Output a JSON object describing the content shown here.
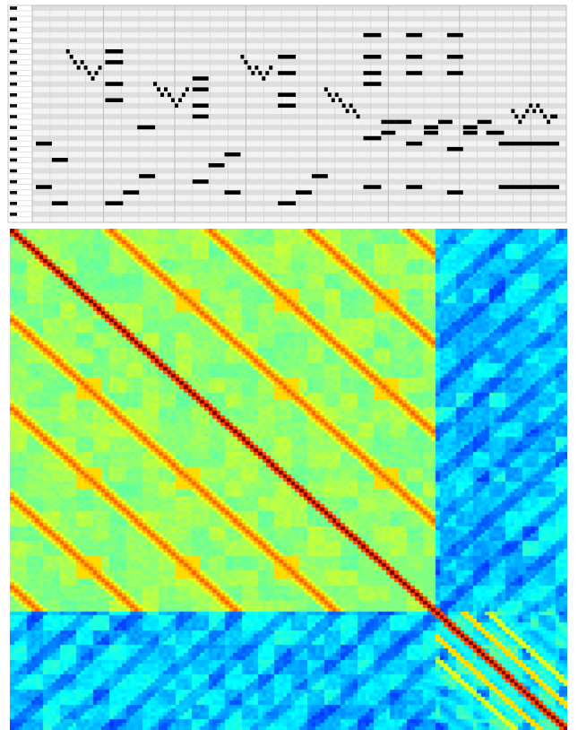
{
  "chart_data": [
    {
      "type": "pianoroll",
      "pitch_rows": 40,
      "time_range": [
        0,
        30
      ],
      "beat_lines_every": 1,
      "bar_lines_every": 4,
      "colors": {
        "note": "#000000",
        "grid": "#d4d4d4",
        "row_dark": "#dedede",
        "row_light": "#f3f3f3",
        "key_black": "#111111"
      },
      "notes": [
        [
          0.2,
          1.1,
          33
        ],
        [
          1.1,
          2.0,
          36
        ],
        [
          0.2,
          1.1,
          25
        ],
        [
          1.1,
          2.0,
          28
        ],
        [
          1.9,
          2.1,
          8
        ],
        [
          2.1,
          2.3,
          9
        ],
        [
          2.3,
          2.5,
          10
        ],
        [
          2.5,
          2.7,
          11
        ],
        [
          2.7,
          2.9,
          10
        ],
        [
          2.9,
          3.1,
          11
        ],
        [
          3.1,
          3.3,
          12
        ],
        [
          3.3,
          3.5,
          13
        ],
        [
          3.5,
          3.7,
          12
        ],
        [
          3.7,
          3.9,
          11
        ],
        [
          4.1,
          5.1,
          8
        ],
        [
          4.1,
          5.1,
          10
        ],
        [
          4.1,
          5.1,
          14
        ],
        [
          4.1,
          5.1,
          17
        ],
        [
          4.1,
          5.1,
          36
        ],
        [
          5.1,
          6.0,
          34
        ],
        [
          6.0,
          6.9,
          31
        ],
        [
          5.9,
          6.9,
          22
        ],
        [
          6.8,
          7.0,
          14
        ],
        [
          7.0,
          7.2,
          15
        ],
        [
          7.2,
          7.4,
          16
        ],
        [
          7.4,
          7.6,
          15
        ],
        [
          7.6,
          7.8,
          16
        ],
        [
          7.8,
          8.0,
          17
        ],
        [
          8.0,
          8.2,
          18
        ],
        [
          8.2,
          8.4,
          17
        ],
        [
          8.4,
          8.6,
          16
        ],
        [
          8.6,
          8.8,
          15
        ],
        [
          9.0,
          9.9,
          13
        ],
        [
          9.0,
          9.9,
          15
        ],
        [
          9.0,
          9.9,
          18
        ],
        [
          9.0,
          9.9,
          20
        ],
        [
          9.0,
          9.9,
          32
        ],
        [
          9.9,
          10.8,
          29
        ],
        [
          10.8,
          11.7,
          27
        ],
        [
          10.8,
          11.7,
          34
        ],
        [
          11.7,
          11.9,
          9
        ],
        [
          11.9,
          12.1,
          10
        ],
        [
          12.1,
          12.3,
          11
        ],
        [
          12.3,
          12.5,
          12
        ],
        [
          12.5,
          12.7,
          11
        ],
        [
          12.7,
          12.9,
          12
        ],
        [
          12.9,
          13.1,
          13
        ],
        [
          13.1,
          13.3,
          12
        ],
        [
          13.3,
          13.5,
          11
        ],
        [
          13.8,
          14.8,
          9
        ],
        [
          13.8,
          14.8,
          12
        ],
        [
          13.8,
          14.8,
          16
        ],
        [
          13.8,
          14.8,
          18
        ],
        [
          13.8,
          14.8,
          36
        ],
        [
          14.8,
          15.7,
          34
        ],
        [
          15.7,
          16.6,
          31
        ],
        [
          16.4,
          16.6,
          15
        ],
        [
          16.6,
          16.8,
          16
        ],
        [
          16.8,
          17.0,
          17
        ],
        [
          17.0,
          17.2,
          16
        ],
        [
          17.2,
          17.4,
          17
        ],
        [
          17.4,
          17.6,
          18
        ],
        [
          17.6,
          17.8,
          19
        ],
        [
          17.8,
          18.0,
          18
        ],
        [
          18.0,
          18.2,
          19
        ],
        [
          18.2,
          18.4,
          20
        ],
        [
          18.6,
          19.6,
          5
        ],
        [
          18.6,
          19.6,
          9
        ],
        [
          18.6,
          19.6,
          12
        ],
        [
          18.6,
          19.6,
          14
        ],
        [
          18.6,
          19.6,
          24
        ],
        [
          18.6,
          19.6,
          33
        ],
        [
          19.6,
          20.4,
          21
        ],
        [
          19.6,
          20.4,
          23
        ],
        [
          20.4,
          21.3,
          21
        ],
        [
          21.0,
          21.9,
          5
        ],
        [
          21.0,
          21.9,
          9
        ],
        [
          21.0,
          21.9,
          12
        ],
        [
          21.0,
          21.9,
          25
        ],
        [
          21.0,
          21.9,
          33
        ],
        [
          22.0,
          22.8,
          22
        ],
        [
          22.0,
          22.8,
          23
        ],
        [
          22.8,
          23.6,
          21
        ],
        [
          23.3,
          24.2,
          5
        ],
        [
          23.3,
          24.2,
          9
        ],
        [
          23.3,
          24.2,
          12
        ],
        [
          23.3,
          24.2,
          26
        ],
        [
          23.3,
          24.2,
          34
        ],
        [
          24.2,
          25.0,
          23
        ],
        [
          24.2,
          25.0,
          22
        ],
        [
          25.0,
          25.8,
          21
        ],
        [
          25.5,
          26.5,
          23
        ],
        [
          26.2,
          29.6,
          25
        ],
        [
          26.2,
          29.6,
          33
        ],
        [
          26.9,
          27.1,
          19
        ],
        [
          27.1,
          27.3,
          20
        ],
        [
          27.3,
          27.5,
          21
        ],
        [
          27.5,
          27.7,
          20
        ],
        [
          27.7,
          27.9,
          19
        ],
        [
          27.9,
          28.1,
          18
        ],
        [
          28.1,
          28.3,
          19
        ],
        [
          28.3,
          28.5,
          18
        ],
        [
          28.5,
          28.7,
          19
        ],
        [
          28.7,
          28.9,
          20
        ],
        [
          28.9,
          29.1,
          21
        ],
        [
          29.1,
          29.3,
          20
        ],
        [
          29.3,
          29.5,
          20
        ]
      ]
    },
    {
      "type": "heatmap",
      "size": 135,
      "colors": [
        "#00008f",
        "#0000ff",
        "#0080ff",
        "#00ffff",
        "#80ff80",
        "#ffff00",
        "#ff8000",
        "#ff0000",
        "#800000"
      ]
    }
  ]
}
